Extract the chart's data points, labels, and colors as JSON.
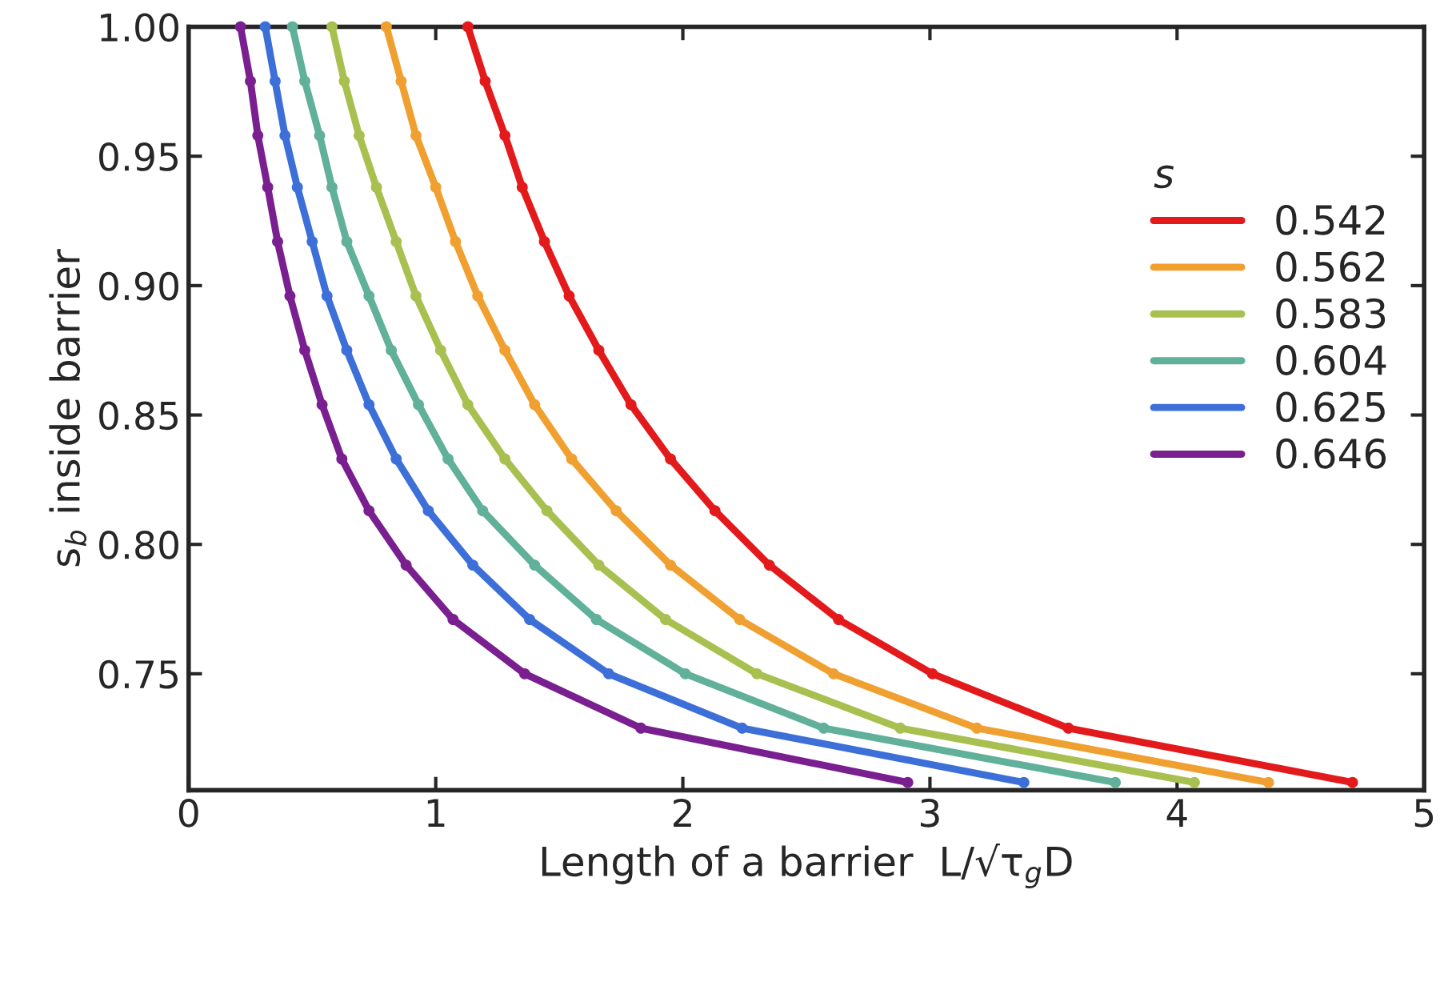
{
  "chart_data": {
    "type": "line",
    "xlabel": "Length of a barrier  L/√τ$_{g}$D",
    "ylabel": "s$_{b}$ inside barrier",
    "legend_title": "s",
    "legend": "right",
    "marker": "circle",
    "line_style": "solid",
    "grid": false,
    "xlim": [
      0,
      5
    ],
    "xticks": [
      0,
      1,
      2,
      3,
      4,
      5
    ],
    "ylim": [
      0.705,
      1.0
    ],
    "yticks": [
      {
        "value": 0.75,
        "label": "0.75"
      },
      {
        "value": 0.8,
        "label": "0.80"
      },
      {
        "value": 0.85,
        "label": "0.85"
      },
      {
        "value": 0.9,
        "label": "0.90"
      },
      {
        "value": 0.95,
        "label": "0.95"
      },
      {
        "value": 1.0,
        "label": "1.00"
      }
    ],
    "series": [
      {
        "name": "0.542",
        "color": "#e31a1c",
        "x": [
          1.13,
          1.2,
          1.28,
          1.35,
          1.44,
          1.54,
          1.66,
          1.79,
          1.95,
          2.13,
          2.35,
          2.63,
          3.01,
          3.56,
          4.71
        ],
        "values": [
          1.0,
          0.979,
          0.958,
          0.938,
          0.917,
          0.896,
          0.875,
          0.854,
          0.833,
          0.813,
          0.792,
          0.771,
          0.75,
          0.729,
          0.708
        ]
      },
      {
        "name": "0.562",
        "color": "#f0a030",
        "x": [
          0.8,
          0.86,
          0.92,
          1.0,
          1.08,
          1.17,
          1.28,
          1.4,
          1.55,
          1.73,
          1.95,
          2.23,
          2.61,
          3.19,
          4.37
        ],
        "values": [
          1.0,
          0.979,
          0.958,
          0.938,
          0.917,
          0.896,
          0.875,
          0.854,
          0.833,
          0.813,
          0.792,
          0.771,
          0.75,
          0.729,
          0.708
        ]
      },
      {
        "name": "0.583",
        "color": "#a8c050",
        "x": [
          0.58,
          0.63,
          0.69,
          0.76,
          0.84,
          0.92,
          1.02,
          1.13,
          1.28,
          1.45,
          1.66,
          1.93,
          2.3,
          2.88,
          4.07
        ],
        "values": [
          1.0,
          0.979,
          0.958,
          0.938,
          0.917,
          0.896,
          0.875,
          0.854,
          0.833,
          0.813,
          0.792,
          0.771,
          0.75,
          0.729,
          0.708
        ]
      },
      {
        "name": "0.604",
        "color": "#60b09a",
        "x": [
          0.42,
          0.47,
          0.53,
          0.58,
          0.64,
          0.73,
          0.82,
          0.93,
          1.05,
          1.19,
          1.4,
          1.65,
          2.01,
          2.57,
          3.75
        ],
        "values": [
          1.0,
          0.979,
          0.958,
          0.938,
          0.917,
          0.896,
          0.875,
          0.854,
          0.833,
          0.813,
          0.792,
          0.771,
          0.75,
          0.729,
          0.708
        ]
      },
      {
        "name": "0.625",
        "color": "#3d6fd8",
        "x": [
          0.31,
          0.35,
          0.39,
          0.44,
          0.5,
          0.56,
          0.64,
          0.73,
          0.84,
          0.97,
          1.15,
          1.38,
          1.7,
          2.24,
          3.38
        ],
        "values": [
          1.0,
          0.979,
          0.958,
          0.938,
          0.917,
          0.896,
          0.875,
          0.854,
          0.833,
          0.813,
          0.792,
          0.771,
          0.75,
          0.729,
          0.708
        ]
      },
      {
        "name": "0.646",
        "color": "#7a1f8f",
        "x": [
          0.21,
          0.25,
          0.28,
          0.32,
          0.36,
          0.41,
          0.47,
          0.54,
          0.62,
          0.73,
          0.88,
          1.07,
          1.36,
          1.83,
          2.91
        ],
        "values": [
          1.0,
          0.979,
          0.958,
          0.938,
          0.917,
          0.896,
          0.875,
          0.854,
          0.833,
          0.813,
          0.792,
          0.771,
          0.75,
          0.729,
          0.708
        ]
      }
    ]
  }
}
